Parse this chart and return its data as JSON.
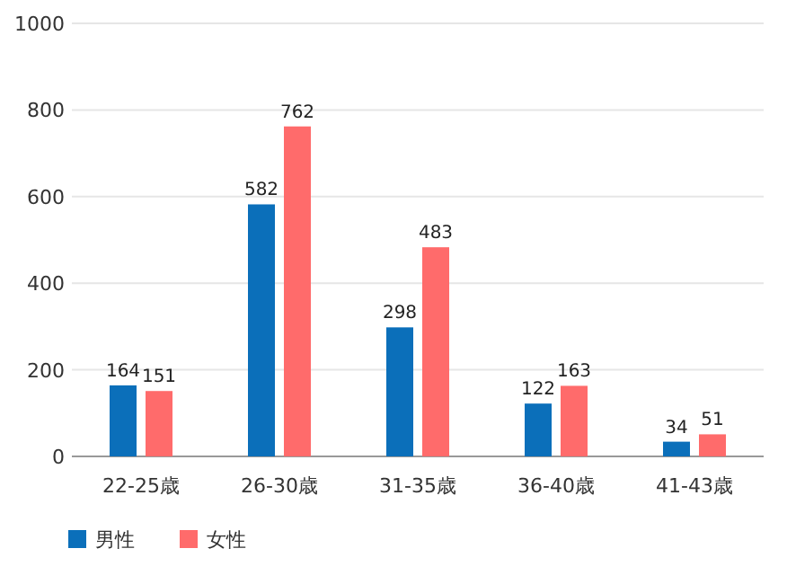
{
  "chart_data": {
    "type": "bar",
    "categories": [
      "22-25歳",
      "26-30歳",
      "31-35歳",
      "36-40歳",
      "41-43歳"
    ],
    "series": [
      {
        "name": "男性",
        "color": "#0b6fba",
        "values": [
          164,
          582,
          298,
          122,
          34
        ]
      },
      {
        "name": "女性",
        "color": "#ff6b6b",
        "values": [
          151,
          762,
          483,
          163,
          51
        ]
      }
    ],
    "ylim": [
      0,
      1000
    ],
    "yticks": [
      0,
      200,
      400,
      600,
      800,
      1000
    ],
    "grid": "y",
    "legend": "bottom left",
    "data_labels": true
  }
}
